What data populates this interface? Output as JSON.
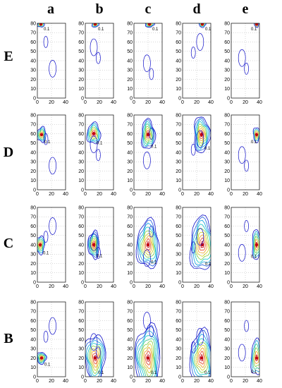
{
  "chart_data": {
    "type": "contour",
    "column_labels": [
      "a",
      "b",
      "c",
      "d",
      "e"
    ],
    "row_labels": [
      "E",
      "D",
      "C",
      "B"
    ],
    "x_ticks": [
      0,
      20,
      40
    ],
    "y_ticks": [
      0,
      10,
      20,
      30,
      40,
      50,
      60,
      70,
      80
    ],
    "xlim": [
      0,
      40
    ],
    "ylim": [
      0,
      80
    ],
    "grid": true,
    "contour_label": "0.1",
    "contour_levels": [
      0.1,
      0.2,
      0.3,
      0.4,
      0.5,
      0.6,
      0.7,
      0.8,
      0.9
    ],
    "colormap": [
      "#1010c8",
      "#2060e0",
      "#10a0e0",
      "#10c8c8",
      "#30c890",
      "#80d040",
      "#d0d020",
      "#f0a020",
      "#e04020",
      "#c00010"
    ],
    "panels": [
      {
        "row": "E",
        "col": "a",
        "peak": {
          "x": 5,
          "y": 79
        },
        "spread": [
          3,
          2
        ],
        "levels": 4
      },
      {
        "row": "E",
        "col": "b",
        "peak": {
          "x": 14,
          "y": 79
        },
        "spread": [
          3,
          2
        ],
        "levels": 4
      },
      {
        "row": "E",
        "col": "c",
        "peak": {
          "x": 22,
          "y": 79
        },
        "spread": [
          4,
          2
        ],
        "levels": 5
      },
      {
        "row": "E",
        "col": "d",
        "peak": {
          "x": 28,
          "y": 79
        },
        "spread": [
          3,
          2
        ],
        "levels": 4
      },
      {
        "row": "E",
        "col": "e",
        "peak": {
          "x": 36,
          "y": 79
        },
        "spread": [
          2,
          2
        ],
        "levels": 3
      },
      {
        "row": "D",
        "col": "a",
        "peak": {
          "x": 6,
          "y": 59
        },
        "spread": [
          4,
          5
        ],
        "levels": 6
      },
      {
        "row": "D",
        "col": "b",
        "peak": {
          "x": 12,
          "y": 60
        },
        "spread": [
          6,
          7
        ],
        "levels": 7
      },
      {
        "row": "D",
        "col": "c",
        "peak": {
          "x": 20,
          "y": 59
        },
        "spread": [
          6,
          10
        ],
        "levels": 8
      },
      {
        "row": "D",
        "col": "d",
        "peak": {
          "x": 27,
          "y": 59
        },
        "spread": [
          7,
          12
        ],
        "levels": 9
      },
      {
        "row": "D",
        "col": "e",
        "peak": {
          "x": 36,
          "y": 59
        },
        "spread": [
          3,
          5
        ],
        "levels": 5
      },
      {
        "row": "C",
        "col": "a",
        "peak": {
          "x": 4,
          "y": 40
        },
        "spread": [
          4,
          6
        ],
        "levels": 6
      },
      {
        "row": "C",
        "col": "b",
        "peak": {
          "x": 12,
          "y": 40
        },
        "spread": [
          5,
          9
        ],
        "levels": 8
      },
      {
        "row": "C",
        "col": "c",
        "peak": {
          "x": 20,
          "y": 40
        },
        "spread": [
          10,
          16
        ],
        "levels": 9
      },
      {
        "row": "C",
        "col": "d",
        "peak": {
          "x": 28,
          "y": 40
        },
        "spread": [
          11,
          18
        ],
        "levels": 9
      },
      {
        "row": "C",
        "col": "e",
        "peak": {
          "x": 36,
          "y": 40
        },
        "spread": [
          4,
          10
        ],
        "levels": 6
      },
      {
        "row": "B",
        "col": "a",
        "peak": {
          "x": 6,
          "y": 20
        },
        "spread": [
          4,
          4
        ],
        "levels": 6
      },
      {
        "row": "B",
        "col": "b",
        "peak": {
          "x": 14,
          "y": 20
        },
        "spread": [
          9,
          16
        ],
        "levels": 9
      },
      {
        "row": "B",
        "col": "c",
        "peak": {
          "x": 20,
          "y": 20
        },
        "spread": [
          11,
          22
        ],
        "levels": 10
      },
      {
        "row": "B",
        "col": "d",
        "peak": {
          "x": 27,
          "y": 20
        },
        "spread": [
          10,
          18
        ],
        "levels": 9
      },
      {
        "row": "B",
        "col": "e",
        "peak": {
          "x": 36,
          "y": 20
        },
        "spread": [
          5,
          12
        ],
        "levels": 6
      }
    ]
  }
}
